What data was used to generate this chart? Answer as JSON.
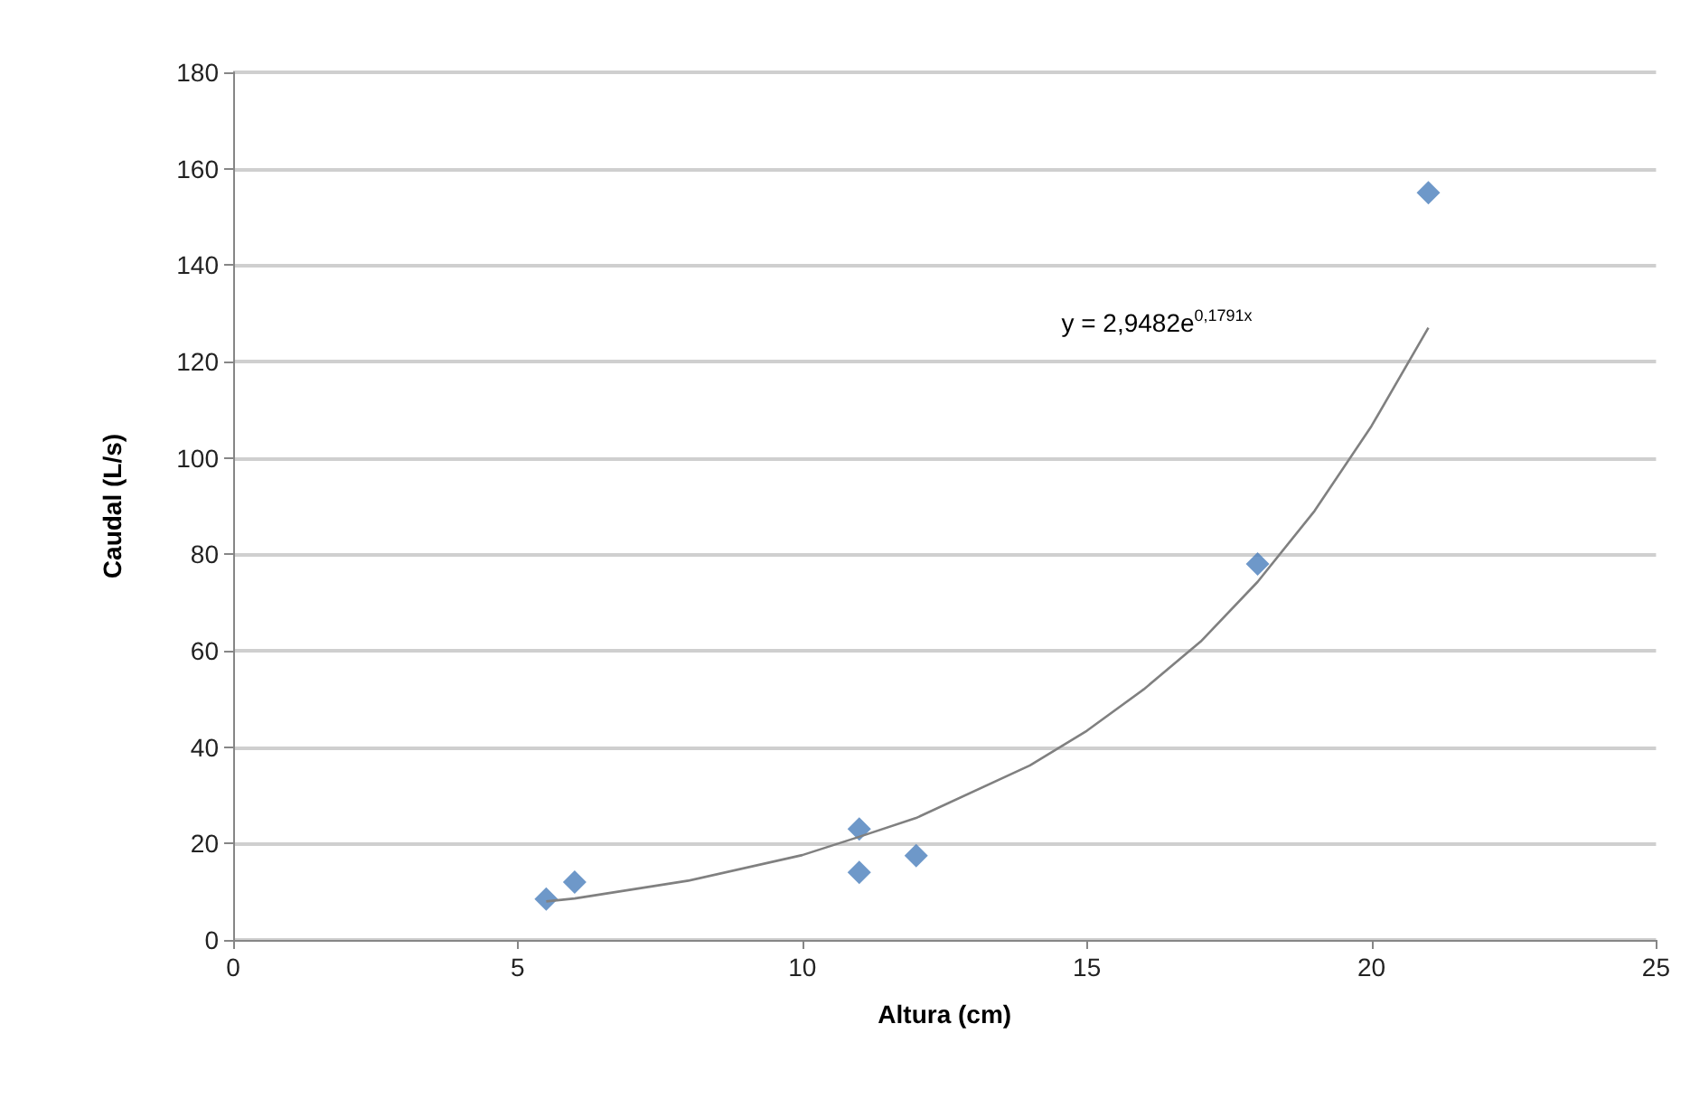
{
  "chart_data": {
    "type": "scatter",
    "xlabel": "Altura (cm)",
    "ylabel": "Caudal (L/s)",
    "xlim": [
      0,
      25
    ],
    "xticks": [
      0,
      5,
      10,
      15,
      20,
      25
    ],
    "ylim": [
      0,
      180
    ],
    "yticks": [
      0,
      20,
      40,
      60,
      80,
      100,
      120,
      140,
      160,
      180
    ],
    "grid": "y",
    "marker": "diamond",
    "series": [
      {
        "color": "#4a7ebb",
        "x": [
          5.5,
          6,
          11,
          11,
          12,
          18,
          21
        ],
        "values": [
          8.5,
          12,
          23,
          14,
          17.5,
          78,
          155
        ]
      },
      {
        "type": "line",
        "color": "#808080",
        "marker": "none",
        "line_style": "solid",
        "x": [
          5.5,
          6,
          8,
          10,
          11,
          12,
          14,
          15,
          16,
          17,
          18,
          19,
          20,
          21
        ],
        "values": [
          8,
          8.6,
          12.3,
          17.6,
          21.4,
          25.3,
          36.2,
          43.4,
          52,
          61.9,
          74.3,
          89,
          106.6,
          127
        ]
      }
    ],
    "annotations": [
      "y = 2,9482e$^{0,1791x}$"
    ]
  }
}
